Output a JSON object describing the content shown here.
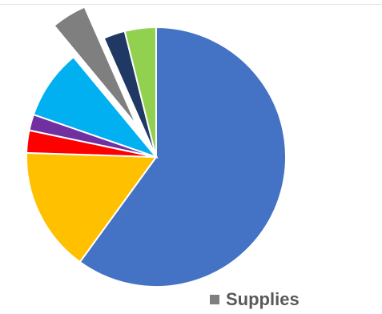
{
  "chart_data": {
    "type": "pie",
    "categories": [
      null,
      null,
      null,
      null,
      null,
      "Supplies",
      null,
      null
    ],
    "values": [
      60,
      15.5,
      2.8,
      2,
      8.7,
      4.4,
      2.7,
      3.9
    ],
    "colors": [
      "#4472c4",
      "#ffc000",
      "#ff0000",
      "#7030a0",
      "#00b0f0",
      "#7f7f7f",
      "#203864",
      "#92d050"
    ],
    "exploded": [
      5
    ]
  }
}
